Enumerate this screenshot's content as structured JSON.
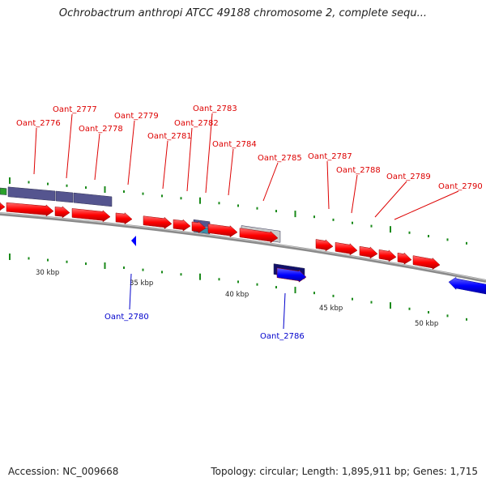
{
  "title": "Ochrobactrum anthropi ATCC 49188 chromosome 2, complete sequ...",
  "footer": {
    "accession": "Accession: NC_009668",
    "summary": "Topology: circular; Length: 1,895,911 bp; Genes: 1,715"
  },
  "colors": {
    "forward_gene": "#ff0000",
    "reverse_gene": "#0000ff",
    "forward_label": "#dd0000",
    "reverse_label": "#0000cc",
    "backbone": "#8a8a8a",
    "tick": "#1a8a1a",
    "feature_purple": "#55558f",
    "feature_navy": "#10106a",
    "feature_grey": "#c8c8c8",
    "feature_teal": "#3a8fa8",
    "feature_green": "#2aa02a"
  },
  "scale_labels": [
    "30 kbp",
    "35 kbp",
    "40 kbp",
    "45 kbp",
    "50 kbp"
  ],
  "gene_labels_forward": [
    "Oant_2776",
    "Oant_2777",
    "Oant_2778",
    "Oant_2779",
    "Oant_2781",
    "Oant_2782",
    "Oant_2783",
    "Oant_2784",
    "Oant_2785",
    "Oant_2787",
    "Oant_2788",
    "Oant_2789",
    "Oant_2790"
  ],
  "gene_labels_reverse": [
    "Oant_2780",
    "Oant_2786"
  ]
}
